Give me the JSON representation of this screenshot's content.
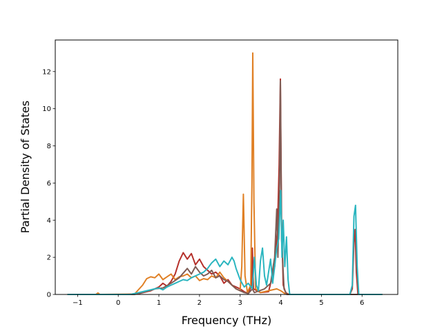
{
  "chart_data": {
    "type": "line",
    "title": "",
    "xlabel": "Frequency (THz)",
    "ylabel": "Partial Density of States",
    "xlim": [
      -1.55,
      6.88
    ],
    "ylim": [
      0,
      13.7
    ],
    "xticks": [
      -1,
      0,
      1,
      2,
      3,
      4,
      5,
      6
    ],
    "yticks": [
      0,
      2,
      4,
      6,
      8,
      10,
      12
    ],
    "grid": false,
    "legend": "none",
    "series": [
      {
        "color": "#b5302a",
        "points": [
          [
            -1.25,
            0
          ],
          [
            0.2,
            0
          ],
          [
            0.5,
            0.04
          ],
          [
            0.8,
            0.2
          ],
          [
            1.0,
            0.4
          ],
          [
            1.1,
            0.6
          ],
          [
            1.2,
            0.45
          ],
          [
            1.3,
            0.7
          ],
          [
            1.4,
            1.1
          ],
          [
            1.5,
            1.8
          ],
          [
            1.6,
            2.25
          ],
          [
            1.7,
            1.9
          ],
          [
            1.8,
            2.2
          ],
          [
            1.9,
            1.6
          ],
          [
            2.0,
            1.9
          ],
          [
            2.1,
            1.5
          ],
          [
            2.2,
            1.3
          ],
          [
            2.3,
            1.1
          ],
          [
            2.4,
            1.2
          ],
          [
            2.5,
            1.0
          ],
          [
            2.6,
            0.6
          ],
          [
            2.7,
            0.8
          ],
          [
            2.8,
            0.5
          ],
          [
            2.9,
            0.4
          ],
          [
            3.0,
            0.3
          ],
          [
            3.1,
            0.15
          ],
          [
            3.2,
            0.05
          ],
          [
            3.28,
            0.5
          ],
          [
            3.3,
            2.5
          ],
          [
            3.33,
            0.3
          ],
          [
            3.5,
            0.1
          ],
          [
            3.7,
            0.15
          ],
          [
            3.85,
            1.5
          ],
          [
            3.92,
            3.5
          ],
          [
            3.96,
            7.0
          ],
          [
            3.99,
            11.6
          ],
          [
            4.02,
            4.0
          ],
          [
            4.06,
            0.5
          ],
          [
            4.12,
            0.1
          ],
          [
            4.2,
            0
          ],
          [
            5.7,
            0
          ],
          [
            5.76,
            0.3
          ],
          [
            5.8,
            2.8
          ],
          [
            5.83,
            3.5
          ],
          [
            5.86,
            1.2
          ],
          [
            5.9,
            0
          ],
          [
            6.5,
            0
          ]
        ]
      },
      {
        "color": "#e08025",
        "points": [
          [
            -1.25,
            0
          ],
          [
            -0.55,
            0
          ],
          [
            -0.5,
            0.08
          ],
          [
            -0.45,
            0
          ],
          [
            0.4,
            0.02
          ],
          [
            0.6,
            0.5
          ],
          [
            0.7,
            0.85
          ],
          [
            0.8,
            0.95
          ],
          [
            0.9,
            0.9
          ],
          [
            1.0,
            1.1
          ],
          [
            1.1,
            0.8
          ],
          [
            1.2,
            0.95
          ],
          [
            1.3,
            1.1
          ],
          [
            1.4,
            0.8
          ],
          [
            1.5,
            0.95
          ],
          [
            1.6,
            1.0
          ],
          [
            1.7,
            1.1
          ],
          [
            1.8,
            0.9
          ],
          [
            1.9,
            1.0
          ],
          [
            2.0,
            0.75
          ],
          [
            2.1,
            0.85
          ],
          [
            2.2,
            0.8
          ],
          [
            2.3,
            1.0
          ],
          [
            2.4,
            0.9
          ],
          [
            2.5,
            1.2
          ],
          [
            2.6,
            0.9
          ],
          [
            2.7,
            0.7
          ],
          [
            2.8,
            0.5
          ],
          [
            2.9,
            0.3
          ],
          [
            3.0,
            0.2
          ],
          [
            3.04,
            1.5
          ],
          [
            3.08,
            5.4
          ],
          [
            3.12,
            1.0
          ],
          [
            3.18,
            0.1
          ],
          [
            3.26,
            0.5
          ],
          [
            3.29,
            6.0
          ],
          [
            3.31,
            13.0
          ],
          [
            3.34,
            5.0
          ],
          [
            3.38,
            0.3
          ],
          [
            3.5,
            0.1
          ],
          [
            3.7,
            0.2
          ],
          [
            3.9,
            0.3
          ],
          [
            4.0,
            0.2
          ],
          [
            4.1,
            0.05
          ],
          [
            4.2,
            0
          ],
          [
            6.5,
            0
          ]
        ]
      },
      {
        "color": "#7f5c55",
        "points": [
          [
            -1.25,
            0
          ],
          [
            0.4,
            0
          ],
          [
            0.6,
            0.1
          ],
          [
            0.9,
            0.3
          ],
          [
            1.1,
            0.35
          ],
          [
            1.3,
            0.6
          ],
          [
            1.5,
            0.9
          ],
          [
            1.7,
            1.4
          ],
          [
            1.8,
            1.1
          ],
          [
            1.9,
            1.5
          ],
          [
            2.0,
            1.2
          ],
          [
            2.1,
            1.0
          ],
          [
            2.2,
            1.1
          ],
          [
            2.3,
            1.3
          ],
          [
            2.4,
            0.9
          ],
          [
            2.5,
            1.0
          ],
          [
            2.6,
            0.8
          ],
          [
            2.7,
            0.7
          ],
          [
            2.8,
            0.5
          ],
          [
            2.9,
            0.3
          ],
          [
            3.0,
            0.2
          ],
          [
            3.1,
            0.1
          ],
          [
            3.2,
            0.05
          ],
          [
            3.3,
            0.3
          ],
          [
            3.35,
            0.1
          ],
          [
            3.6,
            0.3
          ],
          [
            3.75,
            0.6
          ],
          [
            3.85,
            2.0
          ],
          [
            3.9,
            4.6
          ],
          [
            3.93,
            2.0
          ],
          [
            3.97,
            6.0
          ],
          [
            3.99,
            11.5
          ],
          [
            4.02,
            3.0
          ],
          [
            4.08,
            0.3
          ],
          [
            4.15,
            0
          ],
          [
            6.5,
            0
          ]
        ]
      },
      {
        "color": "#2ab5bf",
        "points": [
          [
            -1.25,
            0
          ],
          [
            0.3,
            0
          ],
          [
            0.5,
            0.1
          ],
          [
            0.7,
            0.2
          ],
          [
            0.9,
            0.3
          ],
          [
            1.0,
            0.35
          ],
          [
            1.1,
            0.25
          ],
          [
            1.2,
            0.4
          ],
          [
            1.3,
            0.5
          ],
          [
            1.4,
            0.6
          ],
          [
            1.5,
            0.7
          ],
          [
            1.6,
            0.8
          ],
          [
            1.7,
            0.75
          ],
          [
            1.8,
            0.9
          ],
          [
            1.9,
            1.0
          ],
          [
            2.0,
            1.1
          ],
          [
            2.1,
            1.2
          ],
          [
            2.2,
            1.4
          ],
          [
            2.3,
            1.7
          ],
          [
            2.4,
            1.9
          ],
          [
            2.5,
            1.5
          ],
          [
            2.6,
            1.8
          ],
          [
            2.7,
            1.6
          ],
          [
            2.8,
            2.0
          ],
          [
            2.85,
            1.8
          ],
          [
            2.9,
            1.4
          ],
          [
            3.0,
            0.8
          ],
          [
            3.1,
            0.4
          ],
          [
            3.2,
            0.6
          ],
          [
            3.3,
            0.3
          ],
          [
            3.35,
            2.0
          ],
          [
            3.4,
            0.5
          ],
          [
            3.45,
            0.2
          ],
          [
            3.5,
            1.8
          ],
          [
            3.55,
            2.5
          ],
          [
            3.6,
            1.0
          ],
          [
            3.65,
            0.5
          ],
          [
            3.7,
            1.2
          ],
          [
            3.75,
            1.9
          ],
          [
            3.8,
            0.6
          ],
          [
            3.85,
            1.5
          ],
          [
            3.9,
            2.5
          ],
          [
            3.95,
            3.0
          ],
          [
            4.0,
            5.6
          ],
          [
            4.03,
            2.0
          ],
          [
            4.06,
            4.0
          ],
          [
            4.1,
            1.5
          ],
          [
            4.14,
            3.1
          ],
          [
            4.18,
            0.8
          ],
          [
            4.22,
            0
          ],
          [
            5.7,
            0
          ],
          [
            5.76,
            0.5
          ],
          [
            5.8,
            4.2
          ],
          [
            5.84,
            4.8
          ],
          [
            5.88,
            1.5
          ],
          [
            5.92,
            0
          ],
          [
            6.5,
            0
          ]
        ]
      }
    ]
  }
}
